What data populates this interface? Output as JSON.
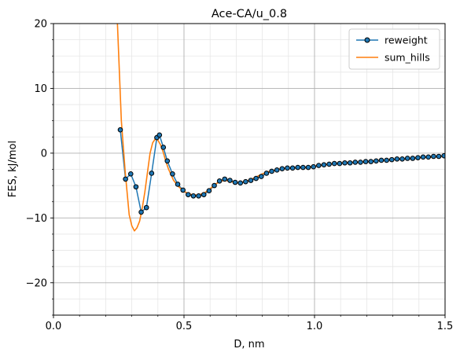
{
  "chart_data": {
    "type": "line",
    "title": "Ace-CA/u_0.8",
    "xlabel": "D, nm",
    "ylabel": "FES, kJ/mol",
    "xlim": [
      0.0,
      1.5
    ],
    "ylim": [
      -25,
      20
    ],
    "xticks": [
      0.0,
      0.5,
      1.0,
      1.5
    ],
    "xtick_labels": [
      "0.0",
      "0.5",
      "1.0",
      "1.5"
    ],
    "yticks": [
      -20,
      -10,
      0,
      10,
      20
    ],
    "ytick_labels": [
      "−20",
      "−10",
      "0",
      "10",
      "20"
    ],
    "grid": true,
    "minor_grid": true,
    "legend_position": "upper right",
    "series": [
      {
        "name": "reweight",
        "color": "#1f77b4",
        "marker": "circle",
        "marker_face": "#1f77b4",
        "marker_edge": "#000000",
        "x": [
          0.256,
          0.276,
          0.296,
          0.316,
          0.336,
          0.356,
          0.376,
          0.396,
          0.406,
          0.421,
          0.436,
          0.456,
          0.476,
          0.496,
          0.516,
          0.536,
          0.556,
          0.576,
          0.596,
          0.616,
          0.636,
          0.656,
          0.676,
          0.696,
          0.716,
          0.736,
          0.756,
          0.776,
          0.796,
          0.816,
          0.836,
          0.856,
          0.876,
          0.896,
          0.916,
          0.936,
          0.956,
          0.976,
          0.996,
          1.016,
          1.036,
          1.056,
          1.076,
          1.096,
          1.116,
          1.136,
          1.156,
          1.176,
          1.196,
          1.216,
          1.236,
          1.256,
          1.276,
          1.296,
          1.316,
          1.336,
          1.356,
          1.376,
          1.396,
          1.416,
          1.436,
          1.456,
          1.476,
          1.496
        ],
        "y": [
          3.6,
          -4.0,
          -3.2,
          -5.2,
          -9.1,
          -8.4,
          -3.1,
          2.4,
          2.8,
          0.9,
          -1.2,
          -3.2,
          -4.8,
          -5.7,
          -6.4,
          -6.6,
          -6.6,
          -6.4,
          -5.8,
          -5.0,
          -4.3,
          -4.0,
          -4.2,
          -4.5,
          -4.6,
          -4.4,
          -4.2,
          -3.9,
          -3.6,
          -3.1,
          -2.8,
          -2.6,
          -2.4,
          -2.3,
          -2.3,
          -2.2,
          -2.2,
          -2.2,
          -2.1,
          -1.9,
          -1.8,
          -1.7,
          -1.6,
          -1.6,
          -1.5,
          -1.5,
          -1.4,
          -1.4,
          -1.3,
          -1.3,
          -1.2,
          -1.1,
          -1.1,
          -1.0,
          -0.9,
          -0.9,
          -0.8,
          -0.8,
          -0.7,
          -0.6,
          -0.6,
          -0.5,
          -0.5,
          -0.4
        ]
      },
      {
        "name": "sum_hills",
        "color": "#ff7f0e",
        "marker": "none",
        "x": [
          0.245,
          0.26,
          0.275,
          0.29,
          0.3,
          0.31,
          0.32,
          0.33,
          0.34,
          0.35,
          0.36,
          0.37,
          0.38,
          0.39,
          0.4,
          0.41,
          0.42,
          0.43,
          0.44,
          0.45,
          0.46,
          0.48,
          0.5,
          0.52,
          0.54,
          0.56,
          0.58,
          0.6,
          0.62,
          0.64,
          0.66,
          0.68,
          0.7,
          0.72,
          0.74,
          0.76,
          0.78,
          0.8,
          0.82,
          0.84,
          0.86,
          0.88,
          0.9,
          0.92,
          0.94,
          0.96,
          0.98,
          1.0,
          1.05,
          1.1,
          1.15,
          1.2,
          1.25,
          1.3,
          1.35,
          1.4,
          1.45,
          1.5
        ],
        "y": [
          20.0,
          5.0,
          -3.0,
          -9.5,
          -11.2,
          -12.0,
          -11.5,
          -10.5,
          -8.5,
          -6.0,
          -3.0,
          0.0,
          1.6,
          2.2,
          2.0,
          1.3,
          0.2,
          -1.2,
          -2.4,
          -3.3,
          -4.2,
          -5.2,
          -5.9,
          -6.3,
          -6.5,
          -6.4,
          -6.1,
          -5.5,
          -4.8,
          -4.3,
          -4.2,
          -4.4,
          -4.6,
          -4.5,
          -4.3,
          -4.0,
          -3.6,
          -3.2,
          -2.9,
          -2.7,
          -2.5,
          -2.4,
          -2.3,
          -2.3,
          -2.2,
          -2.2,
          -2.1,
          -2.0,
          -1.7,
          -1.5,
          -1.4,
          -1.3,
          -1.1,
          -1.0,
          -0.9,
          -0.7,
          -0.6,
          -0.5
        ]
      }
    ]
  }
}
